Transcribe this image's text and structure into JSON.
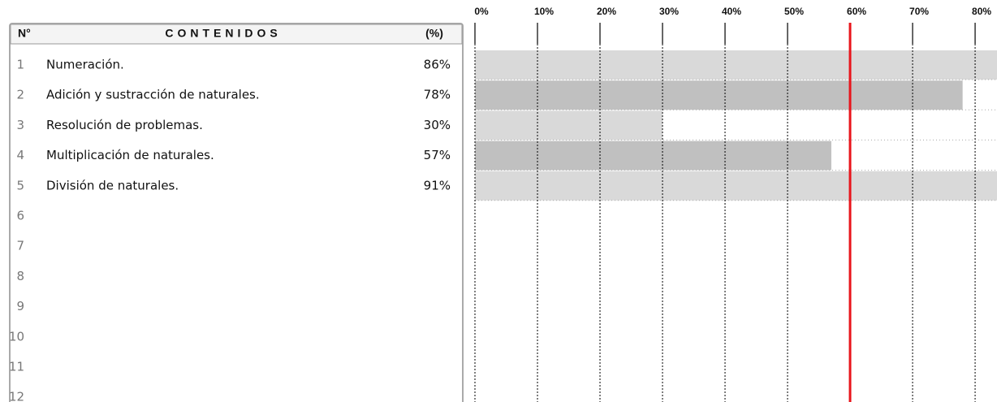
{
  "table": {
    "headers": [
      "N°",
      "CONTENIDOS",
      "(%)"
    ],
    "row_numbers": [
      1,
      2,
      3,
      4,
      5,
      6,
      7,
      8,
      9,
      10,
      11,
      12
    ]
  },
  "chart_data": {
    "type": "bar",
    "orientation": "horizontal",
    "categories": [
      "Numeración.",
      "Adición y sustracción de naturales.",
      "Resolución de problemas.",
      "Multiplicación de naturales.",
      "División de naturales."
    ],
    "values": [
      86,
      78,
      30,
      57,
      91
    ],
    "value_labels": [
      "86%",
      "78%",
      "30%",
      "57%",
      "91%"
    ],
    "colors": [
      "#d9d9d9",
      "#c0c0c0"
    ],
    "xlim": [
      0,
      83.5
    ],
    "xticks": [
      {
        "value": 0,
        "label": "0%"
      },
      {
        "value": 10,
        "label": "10%"
      },
      {
        "value": 20,
        "label": "20%"
      },
      {
        "value": 30,
        "label": "30%"
      },
      {
        "value": 40,
        "label": "40%"
      },
      {
        "value": 50,
        "label": "50%"
      },
      {
        "value": 60,
        "label": "60%"
      },
      {
        "value": 70,
        "label": "70%"
      },
      {
        "value": 80,
        "label": "80%"
      }
    ],
    "reference_line": 60,
    "reference_color": "#e8141b",
    "grid": true
  }
}
